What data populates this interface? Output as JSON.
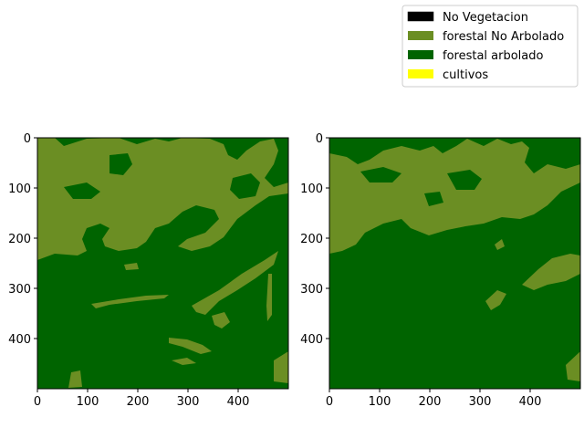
{
  "chart_data": {
    "type": "heatmap",
    "legend": {
      "placement": "top-right",
      "entries": [
        {
          "label": "No Vegetacion",
          "color": "#000000"
        },
        {
          "label": "forestal No Arbolado",
          "color": "#6b8e23"
        },
        {
          "label": "forestal arbolado",
          "color": "#006400"
        },
        {
          "label": "cultivos",
          "color": "#ffff00"
        }
      ]
    },
    "panels": [
      {
        "xlim": [
          0,
          500
        ],
        "ylim": [
          500,
          0
        ],
        "xticks": [
          "0",
          "100",
          "200",
          "300",
          "400"
        ],
        "yticks": [
          "0",
          "100",
          "200",
          "300",
          "400"
        ],
        "background_class": "forestal arbolado",
        "dominant_classes": [
          "forestal arbolado",
          "forestal No Arbolado"
        ]
      },
      {
        "xlim": [
          0,
          500
        ],
        "ylim": [
          500,
          0
        ],
        "xticks": [
          "0",
          "100",
          "200",
          "300",
          "400"
        ],
        "yticks": [
          "0",
          "100",
          "200",
          "300",
          "400"
        ],
        "background_class": "forestal arbolado",
        "dominant_classes": [
          "forestal arbolado",
          "forestal No Arbolado"
        ]
      }
    ]
  }
}
